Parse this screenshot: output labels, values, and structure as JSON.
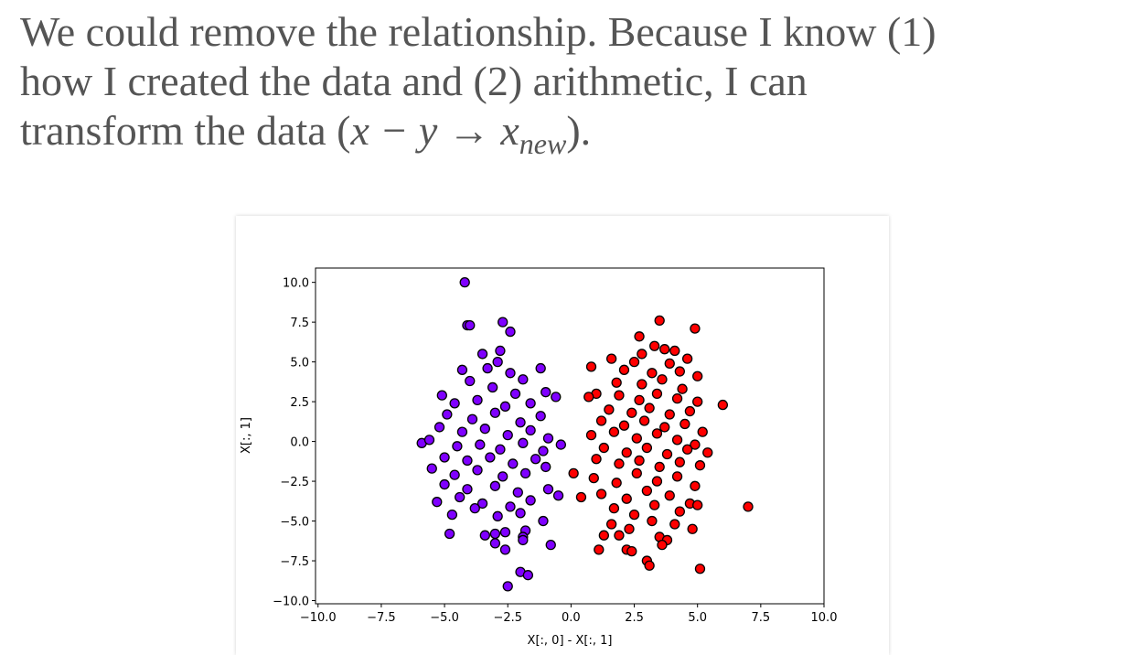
{
  "paragraph": {
    "lines": [
      "We could remove the relationship. Because I know (1)",
      "how I created the data and (2) arithmetic, I can",
      "transform the data ("
    ],
    "math": "x − y → x",
    "subscript": "new",
    "closing": ")."
  },
  "chart_data": {
    "type": "scatter",
    "xlabel": "X[:, 0] - X[:, 1]",
    "ylabel": "X[:, 1]",
    "xlim": [
      -10.1,
      10
    ],
    "ylim": [
      -10.2,
      10.9
    ],
    "xticks": [
      {
        "value": -10,
        "label": "−10.0"
      },
      {
        "value": -7.5,
        "label": "−7.5"
      },
      {
        "value": -5,
        "label": "−5.0"
      },
      {
        "value": -2.5,
        "label": "−2.5"
      },
      {
        "value": 0,
        "label": "0.0"
      },
      {
        "value": 2.5,
        "label": "2.5"
      },
      {
        "value": 5,
        "label": "5.0"
      },
      {
        "value": 7.5,
        "label": "7.5"
      },
      {
        "value": 10,
        "label": "10.0"
      }
    ],
    "yticks": [
      {
        "value": -10,
        "label": "−10.0"
      },
      {
        "value": -7.5,
        "label": "−7.5"
      },
      {
        "value": -5,
        "label": "−5.0"
      },
      {
        "value": -2.5,
        "label": "−2.5"
      },
      {
        "value": 0,
        "label": "0.0"
      },
      {
        "value": 2.5,
        "label": "2.5"
      },
      {
        "value": 5,
        "label": "5.0"
      },
      {
        "value": 7.5,
        "label": "7.5"
      },
      {
        "value": 10,
        "label": "10.0"
      }
    ],
    "series": [
      {
        "color": "#7f00ff",
        "x": [
          -4.2,
          -4.1,
          -4.0,
          -2.7,
          -2.4,
          -3.5,
          -2.8,
          -2.9,
          -4.3,
          -3.3,
          -2.4,
          -1.9,
          -1.2,
          -4.0,
          -3.1,
          -2.2,
          -1.0,
          -0.6,
          -5.1,
          -4.6,
          -3.7,
          -2.6,
          -1.6,
          -4.9,
          -3.9,
          -3.0,
          -2.0,
          -1.2,
          -5.2,
          -4.3,
          -3.4,
          -2.5,
          -1.6,
          -0.9,
          -5.9,
          -5.6,
          -4.5,
          -3.6,
          -2.8,
          -1.9,
          -1.1,
          -0.4,
          -5.0,
          -4.1,
          -3.2,
          -2.3,
          -1.4,
          -5.5,
          -4.6,
          -3.7,
          -2.7,
          -1.8,
          -1.0,
          -5.0,
          -4.1,
          -3.0,
          -2.1,
          -0.9,
          -0.5,
          -5.3,
          -4.4,
          -3.5,
          -2.4,
          -1.6,
          -4.7,
          -3.8,
          -2.9,
          -2.0,
          -1.1,
          -4.8,
          -3.4,
          -3.0,
          -2.6,
          -1.8,
          -1.9,
          -0.8,
          -3.0,
          -2.6,
          -1.9,
          -2.5,
          -2.0,
          -1.7
        ],
        "y": [
          10.0,
          7.3,
          7.3,
          7.5,
          6.9,
          5.5,
          5.7,
          5.0,
          4.5,
          4.6,
          4.3,
          3.9,
          4.6,
          3.8,
          3.4,
          3.0,
          3.1,
          2.8,
          2.9,
          2.4,
          2.6,
          2.2,
          2.4,
          1.7,
          1.4,
          1.8,
          1.2,
          1.6,
          0.9,
          0.6,
          0.8,
          0.4,
          0.7,
          0.2,
          -0.1,
          0.1,
          -0.3,
          -0.2,
          -0.5,
          -0.1,
          -0.6,
          -0.2,
          -1.0,
          -1.2,
          -1.0,
          -1.4,
          -1.1,
          -1.7,
          -2.1,
          -1.8,
          -2.2,
          -2.0,
          -1.6,
          -2.7,
          -3.0,
          -2.8,
          -3.2,
          -3.0,
          -3.4,
          -3.8,
          -3.5,
          -3.9,
          -4.1,
          -3.7,
          -4.6,
          -4.2,
          -4.7,
          -4.5,
          -5.0,
          -5.8,
          -5.9,
          -5.8,
          -5.7,
          -5.6,
          -6.0,
          -6.5,
          -6.4,
          -6.8,
          -6.2,
          -9.1,
          -8.2,
          -8.4
        ]
      },
      {
        "color": "#ff0000",
        "x": [
          3.5,
          4.9,
          2.7,
          3.3,
          3.7,
          2.8,
          4.1,
          4.6,
          1.6,
          2.5,
          3.9,
          0.8,
          2.1,
          3.2,
          4.3,
          5.0,
          1.8,
          2.8,
          3.6,
          4.4,
          1.0,
          1.9,
          2.7,
          3.4,
          4.2,
          5.0,
          6.0,
          0.7,
          1.5,
          2.4,
          3.1,
          3.9,
          4.7,
          1.2,
          2.1,
          2.9,
          3.7,
          4.5,
          5.2,
          0.8,
          1.7,
          2.6,
          3.4,
          4.2,
          4.9,
          1.3,
          2.2,
          3.0,
          3.8,
          4.6,
          5.4,
          1.0,
          1.9,
          2.7,
          3.5,
          4.3,
          5.1,
          0.1,
          0.9,
          1.8,
          2.6,
          3.4,
          4.2,
          4.9,
          0.4,
          1.2,
          2.2,
          3.0,
          3.9,
          4.7,
          1.7,
          2.5,
          3.3,
          4.3,
          5.0,
          7.0,
          1.6,
          2.3,
          3.2,
          4.1,
          4.8,
          1.3,
          1.9,
          3.5,
          3.8,
          3.6,
          1.1,
          2.2,
          2.4,
          3.0,
          3.1,
          5.1
        ],
        "y": [
          7.6,
          7.1,
          6.6,
          6.0,
          5.8,
          5.5,
          5.7,
          5.2,
          5.2,
          5.0,
          4.9,
          4.7,
          4.5,
          4.3,
          4.4,
          4.1,
          3.7,
          3.6,
          3.9,
          3.3,
          3.0,
          2.9,
          2.6,
          3.0,
          2.7,
          2.5,
          2.3,
          2.8,
          2.0,
          1.8,
          2.1,
          1.7,
          1.9,
          1.3,
          1.0,
          1.3,
          0.9,
          1.1,
          0.6,
          0.4,
          0.6,
          0.2,
          0.5,
          0.1,
          -0.2,
          -0.4,
          -0.7,
          -0.4,
          -0.8,
          -0.5,
          -0.7,
          -1.1,
          -1.4,
          -1.2,
          -1.6,
          -1.3,
          -1.5,
          -2.0,
          -2.3,
          -2.6,
          -2.0,
          -2.5,
          -2.2,
          -2.8,
          -3.5,
          -3.3,
          -3.6,
          -3.1,
          -3.4,
          -3.9,
          -4.2,
          -4.6,
          -4.0,
          -4.4,
          -4.0,
          -4.1,
          -5.2,
          -5.5,
          -5.0,
          -5.2,
          -5.5,
          -5.9,
          -5.9,
          -6.0,
          -6.2,
          -6.5,
          -6.8,
          -6.8,
          -6.9,
          -7.5,
          -7.8,
          -8.0
        ]
      }
    ]
  }
}
